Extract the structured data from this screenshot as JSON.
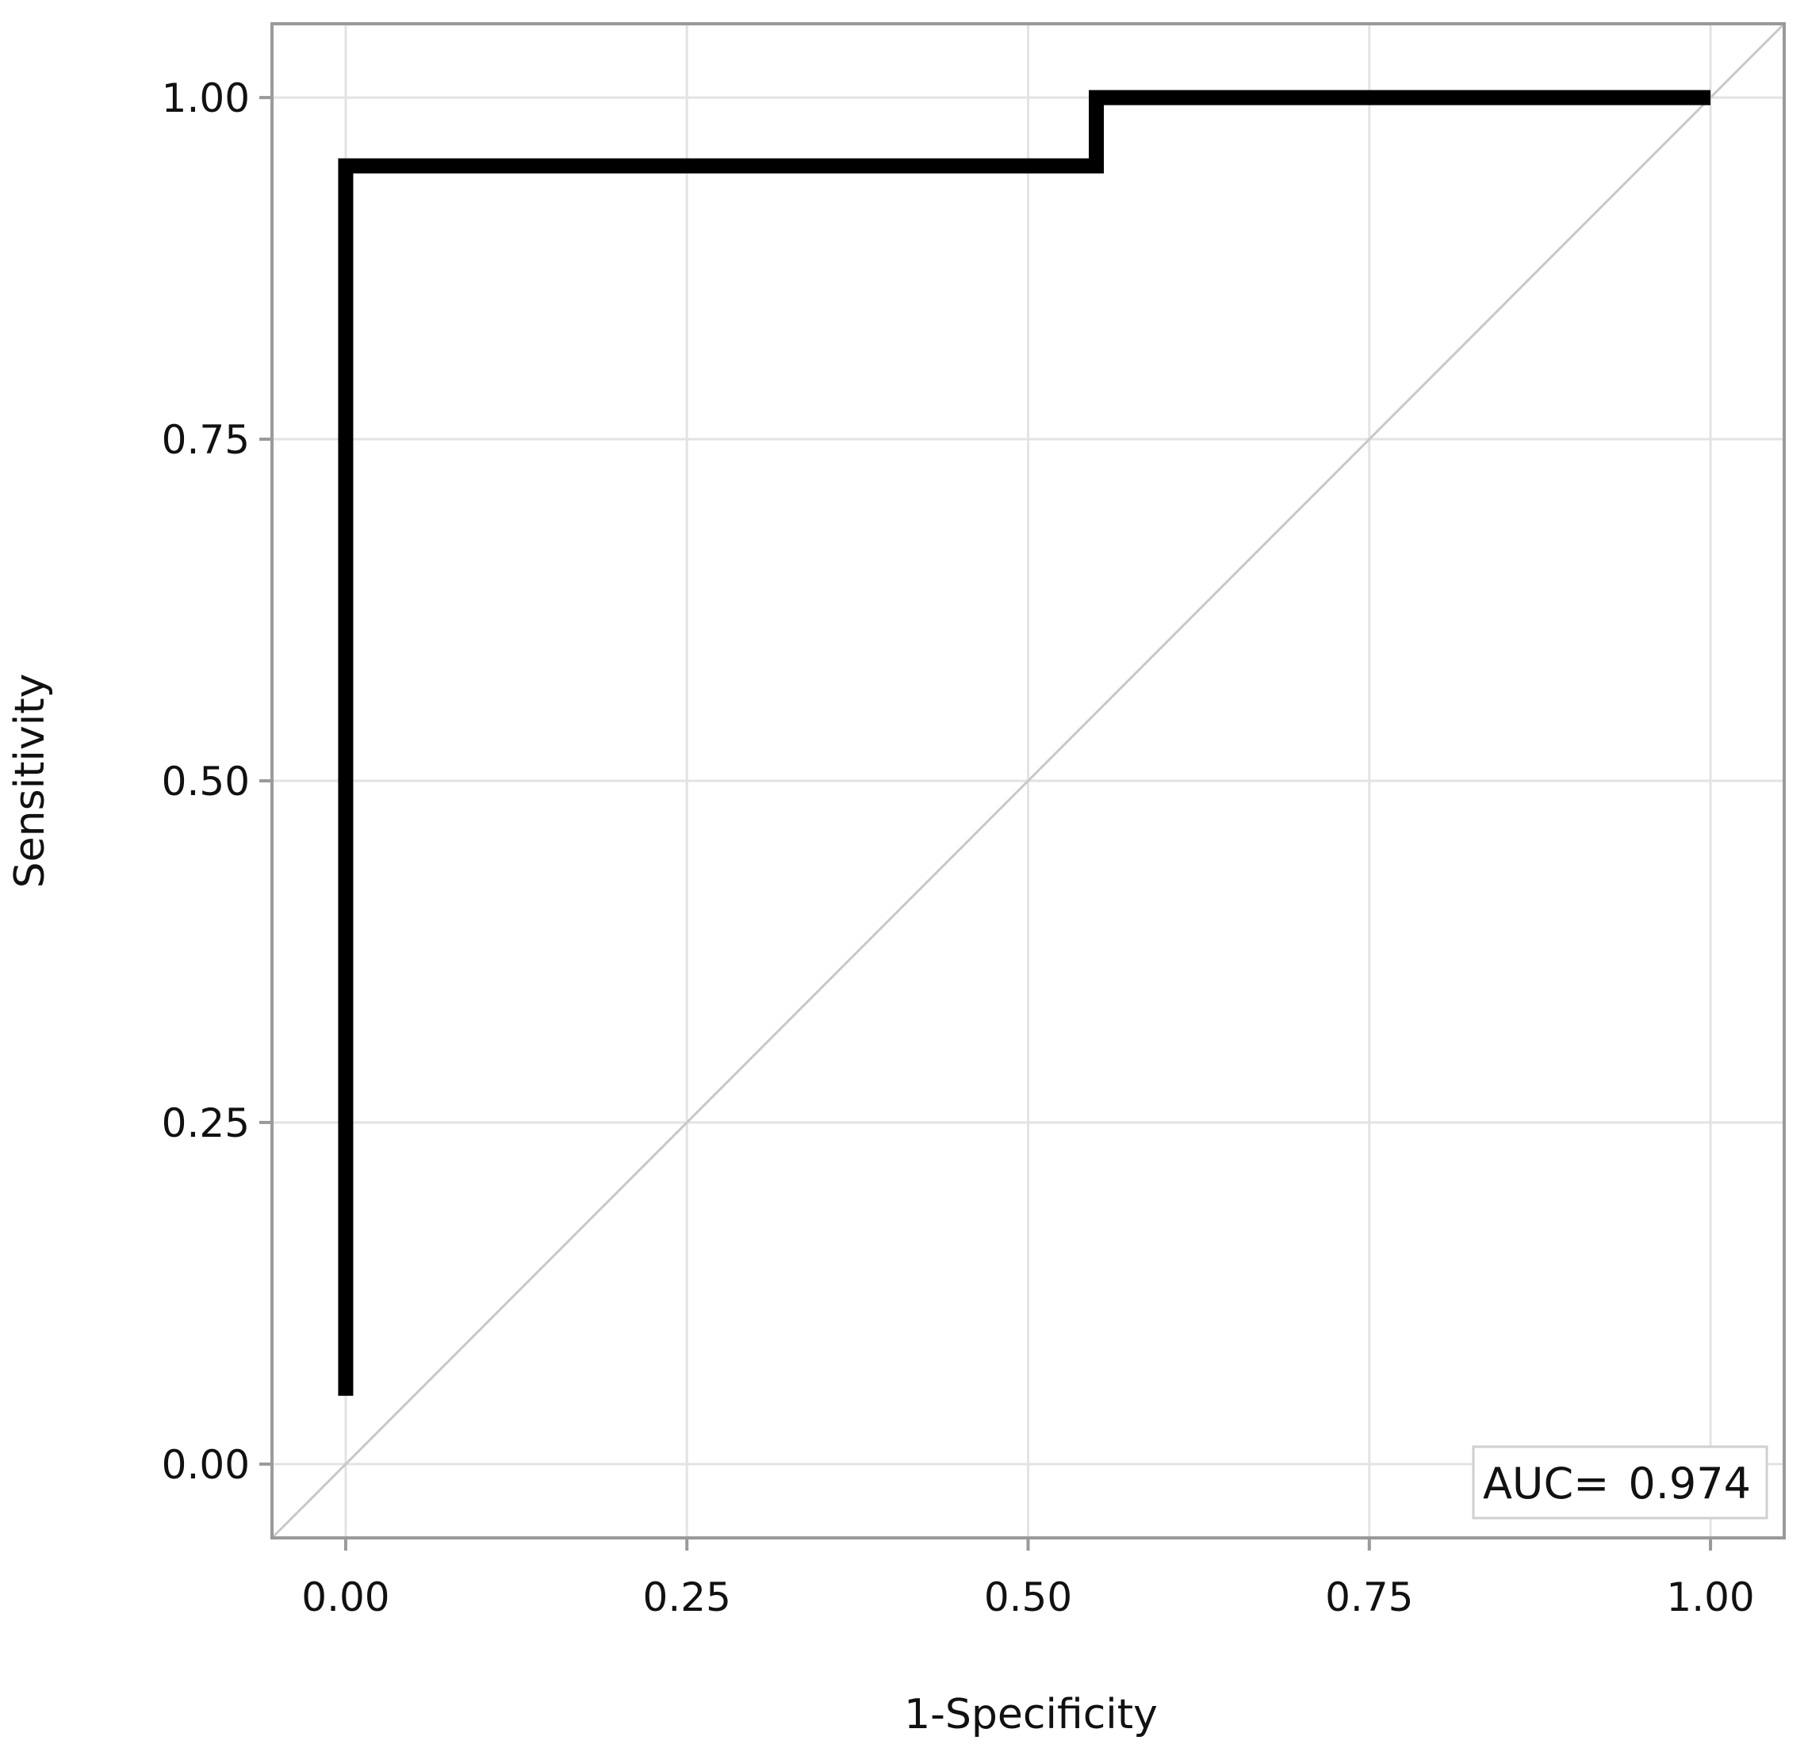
{
  "chart_data": {
    "type": "line",
    "xlabel": "1-Specificity",
    "ylabel": "Sensitivity",
    "xlim": [
      -0.054,
      1.054
    ],
    "ylim": [
      -0.054,
      1.054
    ],
    "x_ticks": [
      0,
      0.25,
      0.5,
      0.75,
      1
    ],
    "y_ticks": [
      0,
      0.25,
      0.5,
      0.75,
      1
    ],
    "x_tick_labels": [
      "0.00",
      "0.25",
      "0.50",
      "0.75",
      "1.00"
    ],
    "y_tick_labels": [
      "0.00",
      "0.25",
      "0.50",
      "0.75",
      "1.00"
    ],
    "grid": true,
    "diagonal_reference": true,
    "series": [
      {
        "x": [
          0,
          0,
          0.55,
          0.55,
          1
        ],
        "y": [
          0.05,
          0.95,
          0.95,
          1,
          1
        ],
        "color": "#000000"
      }
    ],
    "annotation": {
      "prefix": "AUC=",
      "value": "0.974",
      "placement": "bottom-right"
    },
    "colors": {
      "grid": "#e3e3e3",
      "diagonal": "#c8c8c8",
      "frame": "#9a9a9a",
      "curve": "#000000"
    }
  }
}
